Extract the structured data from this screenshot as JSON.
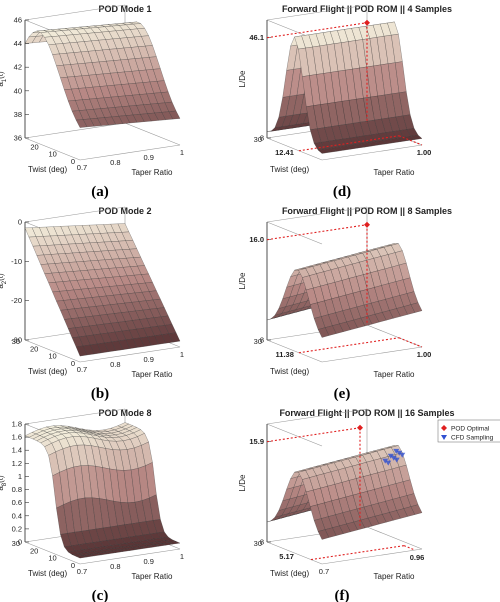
{
  "chart_data": [
    {
      "id": "a",
      "panel_label": "(a)",
      "type": "surface3d",
      "title": "POD Mode 1",
      "zlabel_html": {
        "base": "a",
        "sub": "1",
        "tail": "(t)"
      },
      "xlabel": "Twist (deg)",
      "ylabel": "Taper Ratio",
      "zticks": [
        "36",
        "38",
        "40",
        "42",
        "44",
        "46"
      ],
      "twist_ticks": [
        "0",
        "10",
        "20"
      ],
      "taper_ticks": [
        "0.7",
        "0.8",
        "0.9",
        "1"
      ],
      "zlim": [
        36,
        47.5
      ],
      "shape": "ridge_twist",
      "annotations": null
    },
    {
      "id": "d",
      "panel_label": "(d)",
      "type": "surface3d",
      "title": "Forward Flight || POD ROM || 4 Samples",
      "zlabel": "L/De",
      "xlabel": "Twist (deg)",
      "ylabel": "Taper Ratio",
      "zticks": [
        "8",
        "46.1"
      ],
      "twist_ticks": [
        "30",
        "12.41"
      ],
      "taper_ticks": [
        "1.00"
      ],
      "shape": "ridge_mid",
      "annotations": {
        "z_value": "46.1",
        "twist_value": "12.41",
        "taper_value": "1.00",
        "optimum": {
          "z": 46.1,
          "twist": 12.41,
          "taper": 1.0
        }
      }
    },
    {
      "id": "b",
      "panel_label": "(b)",
      "type": "surface3d",
      "title": "POD Mode 2",
      "zlabel_html": {
        "base": "a",
        "sub": "2",
        "tail": "(t)"
      },
      "xlabel": "Twist (deg)",
      "ylabel": "Taper Ratio",
      "zticks": [
        "-30",
        "-20",
        "-10",
        "0"
      ],
      "twist_ticks": [
        "0",
        "10",
        "20",
        "30"
      ],
      "taper_ticks": [
        "0.7",
        "0.8",
        "0.9",
        "1"
      ],
      "shape": "plane",
      "annotations": null
    },
    {
      "id": "e",
      "panel_label": "(e)",
      "type": "surface3d",
      "title": "Forward Flight || POD ROM || 8 Samples",
      "zlabel": "L/De",
      "xlabel": "Twist (deg)",
      "ylabel": "Taper Ratio",
      "zticks": [
        "8",
        "16.0"
      ],
      "twist_ticks": [
        "30",
        "11.38"
      ],
      "taper_ticks": [
        "1.00"
      ],
      "shape": "ridge_mid_low",
      "annotations": {
        "z_value": "16.0",
        "twist_value": "11.38",
        "taper_value": "1.00",
        "optimum": {
          "z": 16.0,
          "twist": 11.38,
          "taper": 1.0
        }
      }
    },
    {
      "id": "c",
      "panel_label": "(c)",
      "type": "surface3d",
      "title": "POD Mode 8",
      "zlabel_html": {
        "base": "a",
        "sub": "8",
        "tail": "(t)"
      },
      "xlabel": "Twist (deg)",
      "ylabel": "Taper Ratio",
      "zticks": [
        "0",
        "0.2",
        "0.4",
        "0.6",
        "0.8",
        "1",
        "1.2",
        "1.4",
        "1.6",
        "1.8"
      ],
      "twist_ticks": [
        "0",
        "10",
        "20",
        "30"
      ],
      "taper_ticks": [
        "0.7",
        "0.8",
        "0.9",
        "1"
      ],
      "shape": "step",
      "annotations": null
    },
    {
      "id": "f",
      "panel_label": "(f)",
      "type": "surface3d",
      "title": "Forward Flight || POD ROM || 16 Samples",
      "zlabel": "L/De",
      "xlabel": "Twist (deg)",
      "ylabel": "Taper Ratio",
      "zticks": [
        "8",
        "15.9"
      ],
      "twist_ticks": [
        "30",
        "5.17"
      ],
      "taper_ticks": [
        "0.7",
        "0.96"
      ],
      "shape": "ridge_mid_low",
      "legend": [
        {
          "name": "POD Optimal",
          "color": "#e02020",
          "marker": "diamond"
        },
        {
          "name": "CFD Sampling",
          "color": "#3050d0",
          "marker": "triangle-down"
        }
      ],
      "annotations": {
        "z_value": "15.9",
        "twist_value": "5.17",
        "taper_value": "0.96",
        "optimum": {
          "z": 15.9,
          "twist": 5.17,
          "taper": 0.96
        }
      }
    }
  ],
  "colors": {
    "surface_low": "#4e2a2c",
    "surface_mid": "#b98a86",
    "surface_high": "#fafae6",
    "guide_line": "#e02020",
    "axis_line": "#333333"
  }
}
